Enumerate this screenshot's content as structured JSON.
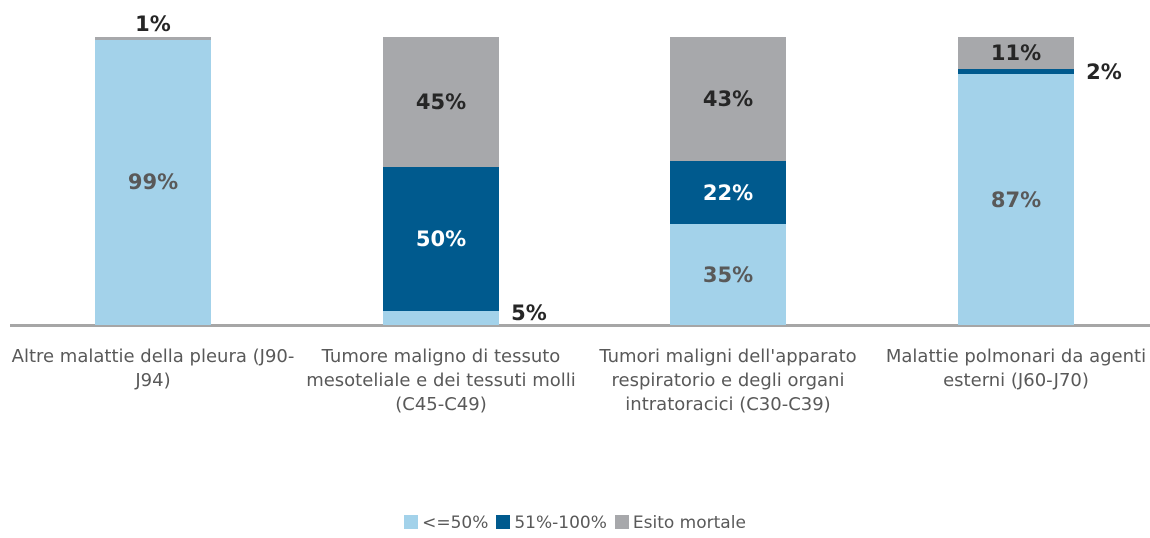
{
  "chart_data": {
    "type": "stacked_bar",
    "categories": [
      "Altre malattie della pleura (J90-J94)",
      "Tumore maligno di tessuto mesoteliale e dei tessuti molli (C45-C49)",
      "Tumori maligni dell'apparato respiratorio e degli organi intratoracici (C30-C39)",
      "Malattie polmonari da agenti esterni (J60-J70)"
    ],
    "series": [
      {
        "name": "<=50%",
        "color": "#a3d2ea",
        "values": [
          99,
          5,
          35,
          87
        ],
        "value_labels": [
          "99%",
          "5%",
          "35%",
          "87%"
        ]
      },
      {
        "name": "51%-100%",
        "color": "#005a8e",
        "values": [
          null,
          50,
          22,
          2
        ],
        "value_labels": [
          null,
          "50%",
          "22%",
          "2%"
        ]
      },
      {
        "name": "Esito mortale",
        "color": "#a7a8ab",
        "values": [
          1,
          45,
          43,
          11
        ],
        "value_labels": [
          "1%",
          "45%",
          "43%",
          "11%"
        ]
      }
    ],
    "ylim": [
      0,
      100
    ]
  }
}
